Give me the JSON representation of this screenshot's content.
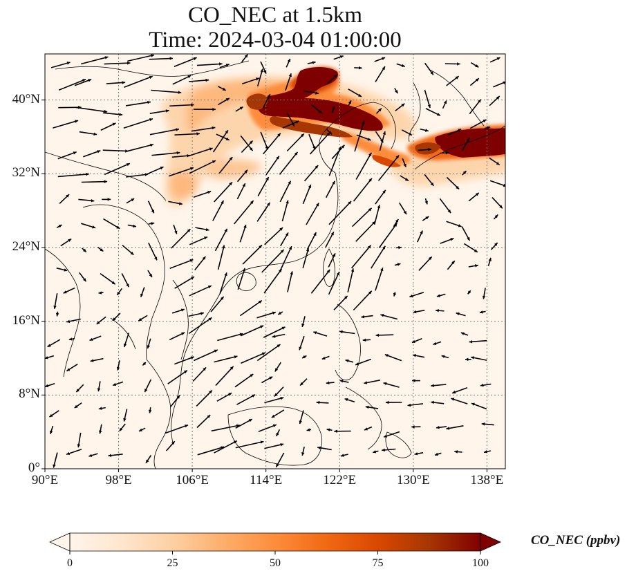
{
  "figure": {
    "title_line1": "CO_NEC at 1.5km",
    "title_line2": "Time: 2024-03-04 01:00:00"
  },
  "map": {
    "extent_lon": [
      90,
      140
    ],
    "extent_lat": [
      0,
      45
    ],
    "lat_ticks": [
      {
        "value": 0,
        "label": "0°"
      },
      {
        "value": 8,
        "label": "8°N"
      },
      {
        "value": 16,
        "label": "16°N"
      },
      {
        "value": 24,
        "label": "24°N"
      },
      {
        "value": 32,
        "label": "32°N"
      },
      {
        "value": 40,
        "label": "40°N"
      }
    ],
    "lon_ticks": [
      {
        "value": 90,
        "label": "90°E"
      },
      {
        "value": 98,
        "label": "98°E"
      },
      {
        "value": 106,
        "label": "106°E"
      },
      {
        "value": 114,
        "label": "114°E"
      },
      {
        "value": 122,
        "label": "122°E"
      },
      {
        "value": 130,
        "label": "130°E"
      },
      {
        "value": 138,
        "label": "138°E"
      }
    ],
    "gridlines": true,
    "background_color": "#fff5eb",
    "colormap": [
      "#fff5eb",
      "#fee6ce",
      "#fdd0a2",
      "#fdae6b",
      "#fd8d3c",
      "#f16913",
      "#d94801",
      "#a63603",
      "#7f0000"
    ]
  },
  "colorbar": {
    "label": "CO_NEC (ppbv)",
    "range": [
      0,
      100
    ],
    "extend": "both",
    "ticks": [
      {
        "value": 0,
        "label": "0"
      },
      {
        "value": 25,
        "label": "25"
      },
      {
        "value": 50,
        "label": "50"
      },
      {
        "value": 75,
        "label": "75"
      },
      {
        "value": 100,
        "label": "100"
      }
    ]
  }
}
